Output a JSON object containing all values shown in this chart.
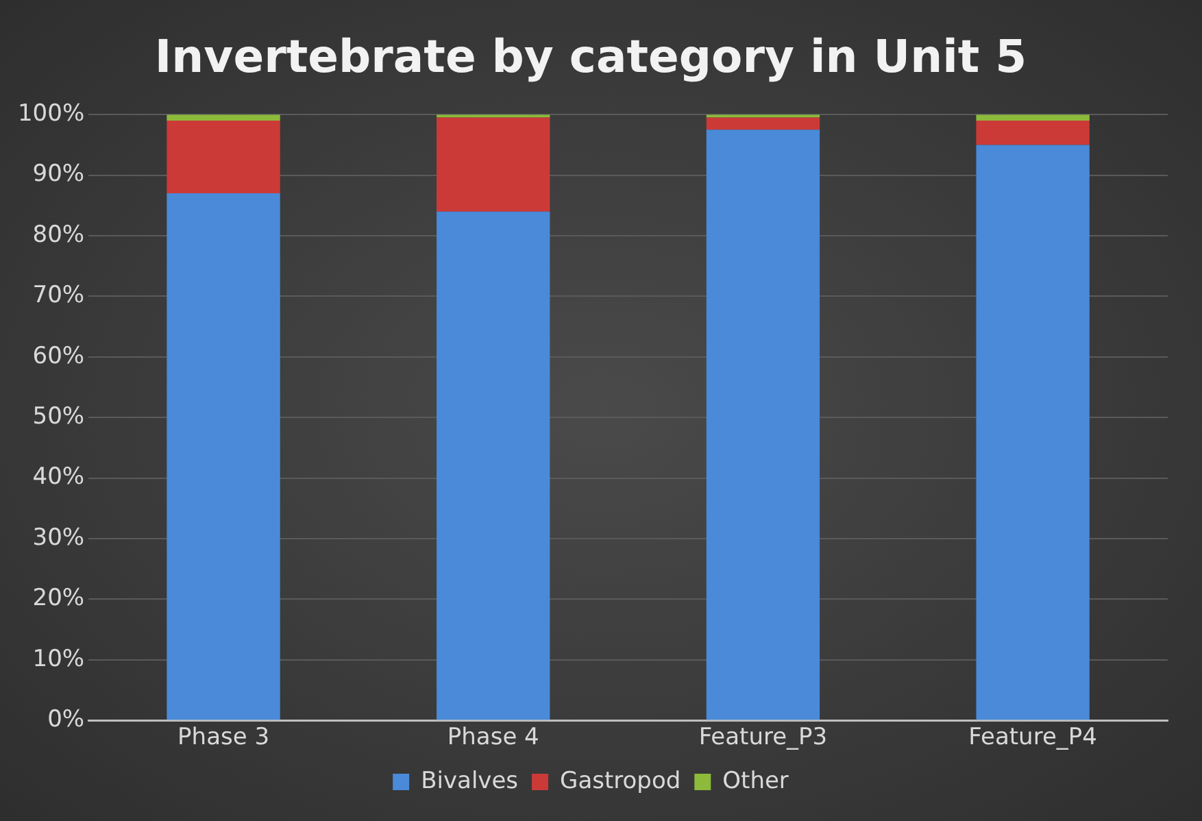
{
  "chart_data": {
    "type": "bar",
    "stacked": true,
    "title": "Invertebrate by category in Unit 5",
    "categories": [
      "Phase 3",
      "Phase 4",
      "Feature_P3",
      "Feature_P4"
    ],
    "series": [
      {
        "name": "Bivalves",
        "color": "#4a8ad8",
        "values": [
          87,
          84,
          97.5,
          95
        ]
      },
      {
        "name": "Gastropod",
        "color": "#cc3a38",
        "values": [
          12,
          15.5,
          2,
          4
        ]
      },
      {
        "name": "Other",
        "color": "#8dba3a",
        "values": [
          1,
          0.5,
          0.5,
          1
        ]
      }
    ],
    "ylim": [
      0,
      100
    ],
    "yticks": [
      {
        "value": 0,
        "label": "0%"
      },
      {
        "value": 10,
        "label": "10%"
      },
      {
        "value": 20,
        "label": "20%"
      },
      {
        "value": 30,
        "label": "30%"
      },
      {
        "value": 40,
        "label": "40%"
      },
      {
        "value": 50,
        "label": "50%"
      },
      {
        "value": 60,
        "label": "60%"
      },
      {
        "value": 70,
        "label": "70%"
      },
      {
        "value": 80,
        "label": "80%"
      },
      {
        "value": 90,
        "label": "90%"
      },
      {
        "value": 100,
        "label": "100%"
      }
    ],
    "grid": "y",
    "legend": "bottom"
  }
}
